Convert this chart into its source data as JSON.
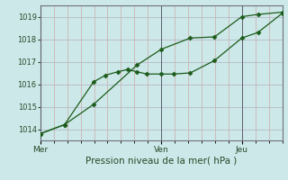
{
  "xlabel": "Pression niveau de la mer( hPa )",
  "bg_color": "#cce8e8",
  "grid_color": "#b8b8c8",
  "line_color": "#1a5c1a",
  "marker_color": "#1a5c1a",
  "ylim": [
    1013.5,
    1019.5
  ],
  "yticks": [
    1014,
    1015,
    1016,
    1017,
    1018,
    1019
  ],
  "xtick_labels": [
    "Mer",
    "Ven",
    "Jeu"
  ],
  "xtick_positions": [
    0.0,
    0.5,
    0.833
  ],
  "vline_positions": [
    0.0,
    0.5,
    0.833
  ],
  "series1_x": [
    0.0,
    0.1,
    0.22,
    0.27,
    0.32,
    0.36,
    0.4,
    0.44,
    0.5,
    0.55,
    0.62,
    0.72,
    0.833,
    0.9,
    1.0
  ],
  "series1_y": [
    1013.8,
    1014.2,
    1016.1,
    1016.4,
    1016.55,
    1016.65,
    1016.55,
    1016.45,
    1016.45,
    1016.45,
    1016.5,
    1017.05,
    1018.05,
    1018.3,
    1019.15
  ],
  "series2_x": [
    0.0,
    0.1,
    0.22,
    0.4,
    0.5,
    0.62,
    0.72,
    0.833,
    0.9,
    1.0
  ],
  "series2_y": [
    1013.8,
    1014.2,
    1015.1,
    1016.85,
    1017.55,
    1018.05,
    1018.1,
    1019.0,
    1019.1,
    1019.2
  ],
  "xmin": 0.0,
  "xmax": 1.0
}
